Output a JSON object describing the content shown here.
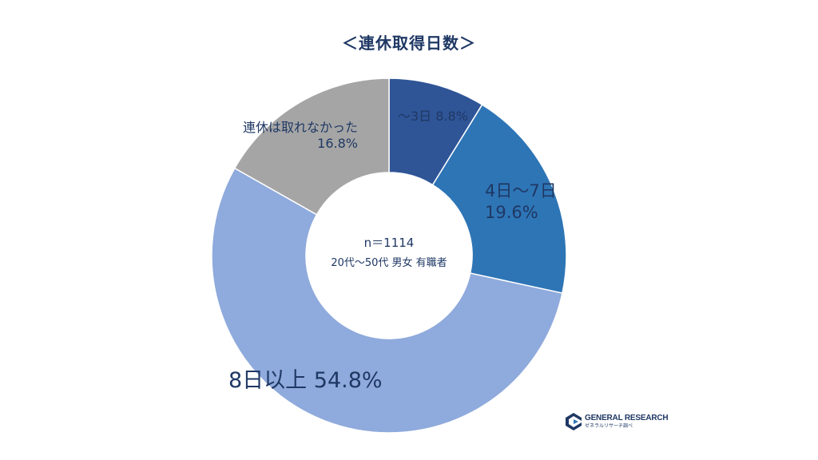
{
  "chart_data": {
    "type": "pie",
    "title": "＜連休取得日数＞",
    "categories": [
      "～3日",
      "4日～7日",
      "8日以上",
      "連休は取れなかった"
    ],
    "values": [
      8.8,
      19.6,
      54.8,
      16.8
    ],
    "value_labels": [
      "8.8%",
      "19.6%",
      "54.8%",
      "16.8%"
    ],
    "unit": "%",
    "donut": true,
    "center_text": "n＝1114",
    "center_subtext": "20代～50代 男女 有職者",
    "colors": [
      "#2f5597",
      "#2e75b6",
      "#8faadc",
      "#a5a5a5"
    ]
  },
  "logo": {
    "name": "GENERAL RESEARCH",
    "subtext": "ゼネラルリサーチ調べ",
    "colors": [
      "#1f3864",
      "#2e75b6"
    ]
  }
}
